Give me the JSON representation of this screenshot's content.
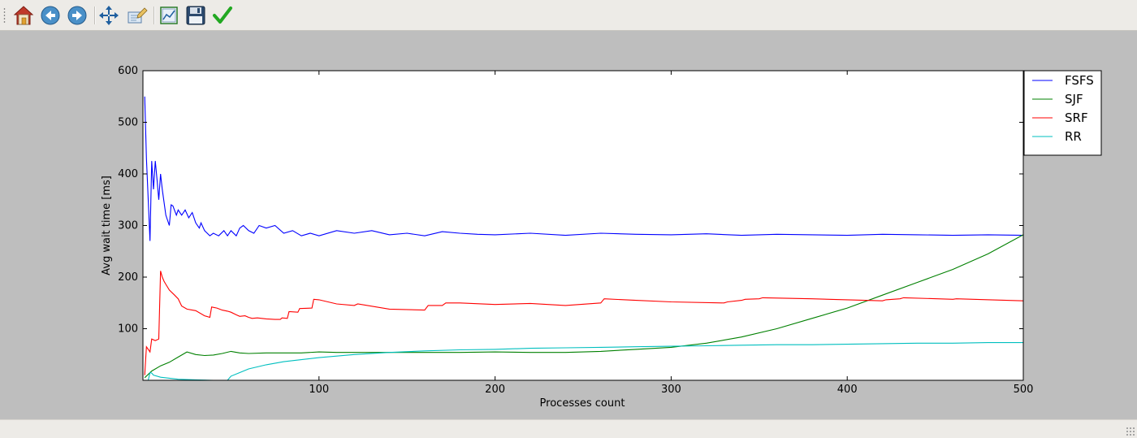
{
  "toolbar": {
    "buttons": [
      {
        "name": "home-icon",
        "tooltip": "Home"
      },
      {
        "name": "back-icon",
        "tooltip": "Back"
      },
      {
        "name": "forward-icon",
        "tooltip": "Forward"
      },
      {
        "name": "pan-icon",
        "tooltip": "Pan"
      },
      {
        "name": "zoom-icon",
        "tooltip": "Zoom"
      },
      {
        "name": "subplots-icon",
        "tooltip": "Subplots"
      },
      {
        "name": "save-icon",
        "tooltip": "Save"
      },
      {
        "name": "edit-parameters-icon",
        "tooltip": "Edit parameters"
      }
    ]
  },
  "chart_data": {
    "type": "line",
    "title": "",
    "xlabel": "Processes count",
    "ylabel": "Avg wait time [ms]",
    "xlim": [
      0,
      500
    ],
    "ylim": [
      0,
      600
    ],
    "xticks": [
      100,
      200,
      300,
      400,
      500
    ],
    "yticks": [
      100,
      200,
      300,
      400,
      500,
      600
    ],
    "grid": false,
    "legend_position": "outside-top-right",
    "series": [
      {
        "name": "FSFS",
        "color": "#0000ff",
        "x": [
          1,
          2,
          4,
          5,
          6,
          7,
          8,
          9,
          10,
          11,
          13,
          15,
          16,
          17,
          19,
          20,
          22,
          24,
          26,
          28,
          30,
          32,
          33,
          35,
          38,
          40,
          43,
          46,
          48,
          50,
          53,
          55,
          57,
          60,
          63,
          66,
          70,
          75,
          80,
          85,
          90,
          95,
          100,
          110,
          120,
          130,
          140,
          150,
          160,
          170,
          180,
          190,
          200,
          220,
          240,
          260,
          280,
          300,
          320,
          340,
          360,
          380,
          400,
          420,
          440,
          460,
          480,
          500
        ],
        "y": [
          550,
          430,
          270,
          425,
          370,
          425,
          390,
          350,
          400,
          370,
          320,
          300,
          340,
          338,
          320,
          330,
          320,
          330,
          315,
          325,
          305,
          295,
          305,
          290,
          280,
          285,
          280,
          290,
          280,
          290,
          280,
          295,
          300,
          290,
          285,
          300,
          295,
          300,
          285,
          290,
          280,
          285,
          280,
          290,
          285,
          290,
          282,
          285,
          280,
          288,
          285,
          283,
          282,
          285,
          281,
          285,
          283,
          282,
          284,
          281,
          283,
          282,
          281,
          283,
          282,
          281,
          282,
          281
        ]
      },
      {
        "name": "SJF",
        "color": "#008000",
        "x": [
          1,
          5,
          10,
          15,
          20,
          25,
          30,
          35,
          40,
          45,
          50,
          55,
          60,
          70,
          80,
          90,
          100,
          110,
          120,
          140,
          160,
          180,
          200,
          220,
          240,
          260,
          280,
          300,
          320,
          340,
          360,
          380,
          400,
          420,
          440,
          460,
          480,
          500
        ],
        "y": [
          5,
          18,
          28,
          35,
          45,
          55,
          50,
          48,
          49,
          52,
          56,
          53,
          52,
          53,
          53,
          53,
          55,
          54,
          54,
          54,
          54,
          54,
          55,
          54,
          54,
          56,
          60,
          64,
          72,
          84,
          100,
          120,
          140,
          165,
          190,
          215,
          245,
          282
        ]
      },
      {
        "name": "SRF",
        "color": "#ff0000",
        "x": [
          1,
          2,
          4,
          5,
          7,
          9,
          10,
          11,
          12,
          13,
          15,
          18,
          20,
          22,
          25,
          30,
          35,
          38,
          39,
          42,
          45,
          48,
          50,
          53,
          55,
          58,
          60,
          62,
          65,
          70,
          75,
          78,
          79,
          82,
          83,
          88,
          89,
          96,
          97,
          100,
          110,
          120,
          122,
          140,
          160,
          162,
          170,
          172,
          180,
          200,
          220,
          240,
          260,
          262,
          280,
          300,
          330,
          332,
          340,
          342,
          350,
          352,
          380,
          400,
          420,
          422,
          430,
          432,
          460,
          462,
          500
        ],
        "y": [
          10,
          65,
          55,
          80,
          77,
          80,
          212,
          200,
          192,
          186,
          175,
          165,
          158,
          144,
          138,
          135,
          125,
          122,
          142,
          140,
          136,
          134,
          132,
          127,
          124,
          125,
          122,
          120,
          121,
          119,
          118,
          118,
          121,
          120,
          133,
          132,
          139,
          140,
          157,
          156,
          148,
          145,
          148,
          138,
          136,
          145,
          145,
          150,
          150,
          147,
          149,
          145,
          150,
          158,
          155,
          152,
          150,
          152,
          155,
          157,
          158,
          160,
          158,
          156,
          154,
          156,
          158,
          160,
          157,
          158,
          154
        ]
      },
      {
        "name": "RR",
        "color": "#00bfbf",
        "x": [
          3,
          4,
          5,
          6,
          10,
          20,
          30,
          40,
          48,
          50,
          55,
          60,
          70,
          80,
          90,
          100,
          120,
          140,
          160,
          180,
          200,
          220,
          240,
          260,
          280,
          300,
          320,
          340,
          360,
          380,
          400,
          420,
          440,
          460,
          480,
          500
        ],
        "y": [
          0,
          15,
          14,
          10,
          6,
          2,
          1,
          0,
          0,
          8,
          15,
          22,
          30,
          36,
          40,
          44,
          50,
          54,
          57,
          59,
          60,
          62,
          63,
          64,
          65,
          66,
          67,
          68,
          69,
          69,
          70,
          71,
          72,
          72,
          73,
          73
        ]
      }
    ]
  }
}
